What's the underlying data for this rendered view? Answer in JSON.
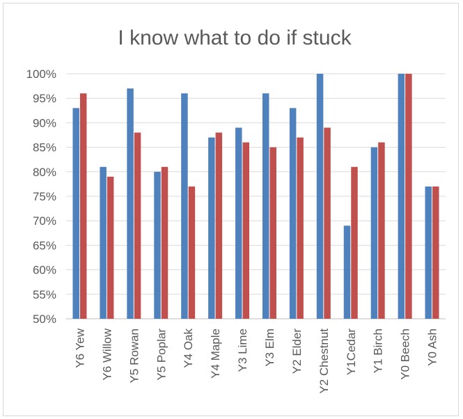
{
  "chart_data": {
    "type": "bar",
    "title": "I know what to do if stuck",
    "xlabel": "",
    "ylabel": "",
    "ylim": [
      50,
      100
    ],
    "yticks": [
      "50%",
      "55%",
      "60%",
      "65%",
      "70%",
      "75%",
      "80%",
      "85%",
      "90%",
      "95%",
      "100%"
    ],
    "grid": true,
    "legend": "none",
    "categories": [
      "Y6 Yew",
      "Y6 Willow",
      "Y5 Rowan",
      "Y5 Poplar",
      "Y4 Oak",
      "Y4 Maple",
      "Y3 Lime",
      "Y3 Elm",
      "Y2 Elder",
      "Y2 Chestnut",
      "Y1Cedar",
      "Y1 Birch",
      "Y0 Beech",
      "Y0 Ash"
    ],
    "series": [
      {
        "color": "#4f81bd",
        "values": [
          93,
          81,
          97,
          80,
          96,
          87,
          89,
          96,
          93,
          100,
          69,
          85,
          100,
          77
        ]
      },
      {
        "color": "#c0504d",
        "values": [
          96,
          79,
          88,
          81,
          77,
          88,
          86,
          85,
          87,
          89,
          81,
          86,
          100,
          77
        ]
      }
    ]
  }
}
